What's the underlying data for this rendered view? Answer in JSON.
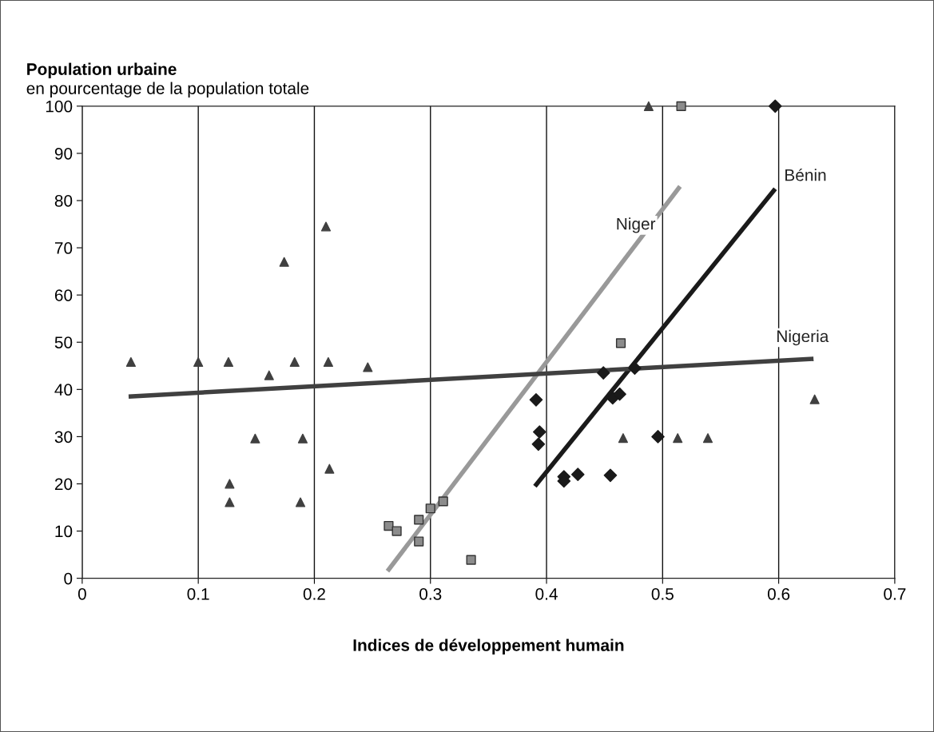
{
  "chart_data": {
    "type": "scatter",
    "title": "Population urbaine",
    "subtitle": "en pourcentage de la population totale",
    "xlabel": "Indices de développement humain",
    "xlim": [
      0,
      0.7
    ],
    "xticks": [
      0,
      0.1,
      0.2,
      0.3,
      0.4,
      0.5,
      0.6,
      0.7
    ],
    "ylim": [
      0,
      100
    ],
    "yticks": [
      0,
      10,
      20,
      30,
      40,
      50,
      60,
      70,
      80,
      90,
      100
    ],
    "grid": "x",
    "legend": false,
    "series": [
      {
        "marker": "triangle",
        "color": "#404040",
        "x": [
          0.042,
          0.1,
          0.126,
          0.161,
          0.183,
          0.212,
          0.246,
          0.149,
          0.19,
          0.213,
          0.127,
          0.127,
          0.188,
          0.174,
          0.21,
          0.488,
          0.466,
          0.513,
          0.539,
          0.631
        ],
        "values": [
          45.8,
          45.8,
          45.8,
          43,
          45.8,
          45.8,
          44.7,
          29.6,
          29.6,
          23.2,
          20,
          16.1,
          16.1,
          67,
          74.5,
          100,
          29.7,
          29.7,
          29.7,
          37.9
        ]
      },
      {
        "marker": "square",
        "color": "#8c8c8c",
        "x": [
          0.264,
          0.271,
          0.29,
          0.3,
          0.311,
          0.29,
          0.335,
          0.464,
          0.516
        ],
        "values": [
          11.1,
          10,
          12.4,
          14.8,
          16.3,
          7.8,
          3.9,
          49.8,
          100
        ]
      },
      {
        "marker": "diamond",
        "color": "#1a1a1a",
        "x": [
          0.391,
          0.394,
          0.393,
          0.415,
          0.415,
          0.427,
          0.449,
          0.455,
          0.457,
          0.463,
          0.476,
          0.496,
          0.597
        ],
        "values": [
          37.8,
          31,
          28.4,
          21.5,
          20.6,
          22,
          43.5,
          21.8,
          38.2,
          39,
          44.5,
          30,
          100
        ]
      },
      {
        "type": "line",
        "name": "Niger",
        "color": "#999999",
        "x": [
          0.263,
          0.515
        ],
        "values": [
          1.5,
          83
        ]
      },
      {
        "type": "line",
        "name": "Bénin",
        "color": "#1a1a1a",
        "x": [
          0.39,
          0.597
        ],
        "values": [
          19.5,
          82.5
        ]
      },
      {
        "type": "line",
        "name": "Nigeria",
        "color": "#404040",
        "x": [
          0.04,
          0.63
        ],
        "values": [
          38.5,
          46.5
        ]
      }
    ]
  }
}
